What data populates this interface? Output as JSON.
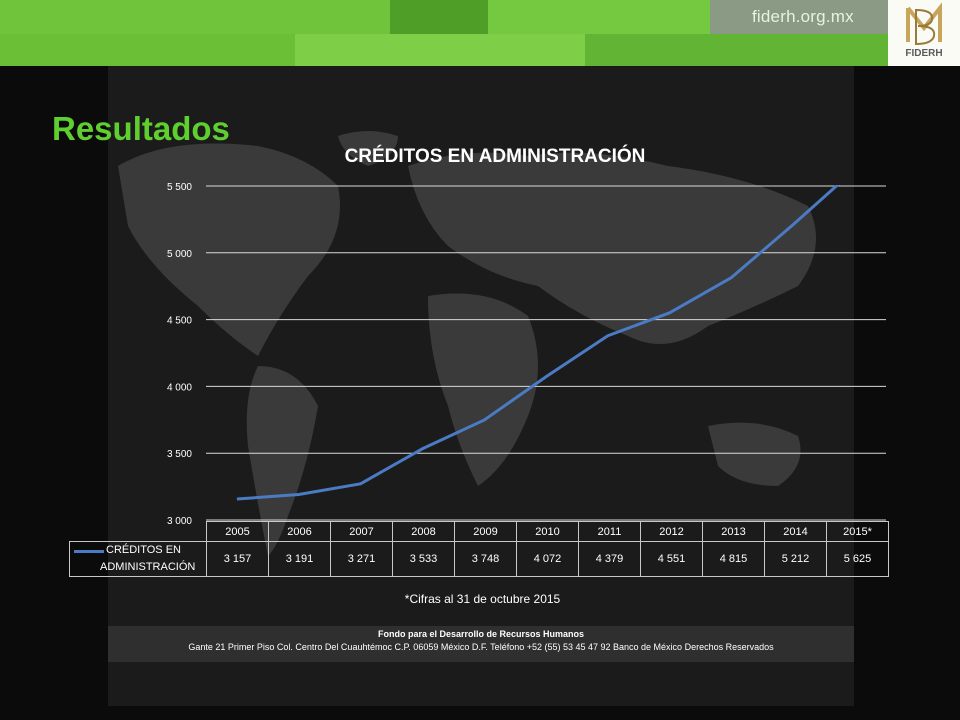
{
  "header": {
    "url": "fiderh.org.mx",
    "logo_text": "FIDERH"
  },
  "page_title": "Resultados",
  "chart_data": {
    "type": "line",
    "title": "CRÉDITOS EN ADMINISTRACIÓN",
    "categories": [
      "2005",
      "2006",
      "2007",
      "2008",
      "2009",
      "2010",
      "2011",
      "2012",
      "2013",
      "2014",
      "2015*"
    ],
    "series": [
      {
        "name": "CRÉDITOS EN ADMINISTRACIÓN",
        "values": [
          3157,
          3191,
          3271,
          3533,
          3748,
          4072,
          4379,
          4551,
          4815,
          5212,
          5625
        ],
        "color": "#4a7bc4"
      }
    ],
    "value_labels": [
      "3 157",
      "3 191",
      "3 271",
      "3 533",
      "3 748",
      "4 072",
      "4 379",
      "4 551",
      "4 815",
      "5 212",
      "5 625"
    ],
    "ylim": [
      3000,
      5500
    ],
    "yticks": [
      3000,
      3500,
      4000,
      4500,
      5000,
      5500
    ],
    "ytick_labels": [
      "3 000",
      "3 500",
      "4 000",
      "4 500",
      "5 000",
      "5 500"
    ],
    "grid": true,
    "legend": "data-table"
  },
  "legend_label_line1": "CRÉDITOS EN",
  "legend_label_line2": "ADMINISTRACIÓN",
  "note": "*Cifras al 31 de octubre 2015",
  "footer": {
    "line1": "Fondo para el Desarrollo de Recursos Humanos",
    "line2": "Gante 21 Primer Piso Col. Centro Del Cuauhtémoc C.P. 06059 México D.F. Teléfono +52 (55) 53 45 47 92 Banco de México Derechos Reservados"
  },
  "colors": {
    "banner": "#5fb830",
    "title": "#5fcf2f",
    "line": "#4a7bc4"
  }
}
